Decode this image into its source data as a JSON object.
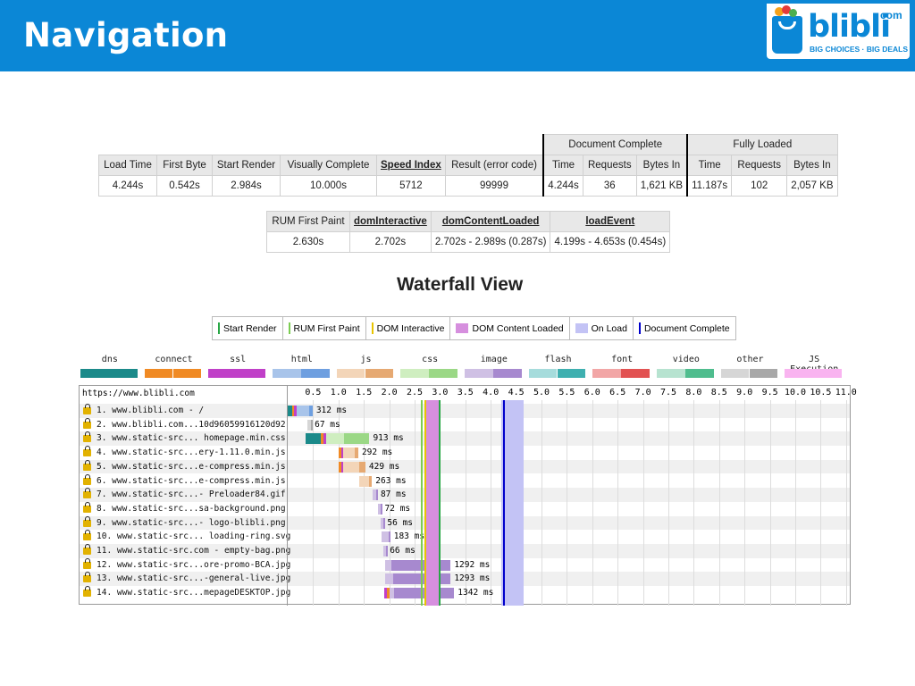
{
  "title": "Navigation",
  "logo": {
    "word": "blibli",
    "dotcom": "com",
    "tagline": "BIG CHOICES · BIG DEALS"
  },
  "summary": {
    "group_headers": [
      "Document Complete",
      "Fully Loaded"
    ],
    "headers": [
      "Load Time",
      "First Byte",
      "Start Render",
      "Visually Complete",
      "Speed Index",
      "Result (error code)",
      "Time",
      "Requests",
      "Bytes In",
      "Time",
      "Requests",
      "Bytes In"
    ],
    "values": [
      "4.244s",
      "0.542s",
      "2.984s",
      "10.000s",
      "5712",
      "99999",
      "4.244s",
      "36",
      "1,621 KB",
      "11.187s",
      "102",
      "2,057 KB"
    ]
  },
  "rum": {
    "headers": [
      "RUM First Paint",
      "domInteractive",
      "domContentLoaded",
      "loadEvent"
    ],
    "values": [
      "2.630s",
      "2.702s",
      "2.702s - 2.989s (0.287s)",
      "4.199s - 4.653s (0.454s)"
    ]
  },
  "waterfall_title": "Waterfall View",
  "legend": [
    {
      "label": "Start Render",
      "color": "#28a745"
    },
    {
      "label": "RUM First Paint",
      "color": "#7ccd52"
    },
    {
      "label": "DOM Interactive",
      "color": "#e8c400"
    },
    {
      "label": "DOM Content Loaded",
      "color": "#d68fde"
    },
    {
      "label": "On Load",
      "color": "#c3c3f5"
    },
    {
      "label": "Document Complete",
      "color": "#0000cc"
    }
  ],
  "request_types": [
    {
      "label": "dns",
      "c1": "#1b8a8a",
      "c2": "#1b8a8a"
    },
    {
      "label": "connect",
      "c1": "#f08a24",
      "c2": "#f08a24"
    },
    {
      "label": "ssl",
      "c1": "#c040c8",
      "c2": "#c040c8"
    },
    {
      "label": "html",
      "c1": "#a8c4ea",
      "c2": "#6e9fe0"
    },
    {
      "label": "js",
      "c1": "#f3d5b8",
      "c2": "#e6a972"
    },
    {
      "label": "css",
      "c1": "#cfeec0",
      "c2": "#9bd886"
    },
    {
      "label": "image",
      "c1": "#cfc0e4",
      "c2": "#a789cf"
    },
    {
      "label": "flash",
      "c1": "#a6dcdc",
      "c2": "#3fb0b0"
    },
    {
      "label": "font",
      "c1": "#f2a6a6",
      "c2": "#e25252"
    },
    {
      "label": "video",
      "c1": "#b7e3d0",
      "c2": "#4fbd8e"
    },
    {
      "label": "other",
      "c1": "#d6d6d6",
      "c2": "#a8a8a8"
    },
    {
      "label": "JS Execution",
      "c1": "#f9b4f0",
      "c2": "#f9b4f0"
    }
  ],
  "waterfall": {
    "page_url": "https://www.blibli.com",
    "ticks": [
      "0.5",
      "1.0",
      "1.5",
      "2.0",
      "2.5",
      "3.0",
      "3.5",
      "4.0",
      "4.5",
      "5.0",
      "5.5",
      "6.0",
      "6.5",
      "7.0",
      "7.5",
      "8.0",
      "8.5",
      "9.0",
      "9.5",
      "10.0",
      "10.5",
      "11.0"
    ],
    "marker_seconds": {
      "start_render": 2.984,
      "rum_first_paint": 2.63,
      "dom_interactive": 2.702,
      "dom_content_loaded": [
        2.702,
        2.989
      ],
      "on_load": [
        4.199,
        4.653
      ],
      "document_complete": 4.244
    },
    "rows": [
      {
        "label": "1. www.blibli.com - /",
        "duration": "312 ms",
        "type": "html",
        "start": 0.0,
        "wait": 0.24,
        "dl": 0.07,
        "pre": [
          {
            "c": "#1b8a8a",
            "d": 0.08
          },
          {
            "c": "#f08a24",
            "d": 0.04
          },
          {
            "c": "#c040c8",
            "d": 0.06
          }
        ]
      },
      {
        "label": "2. www.blibli.com...10d96059916120d92",
        "duration": "67 ms",
        "type": "other",
        "start": 0.39,
        "wait": 0.06,
        "dl": 0.01,
        "pre": []
      },
      {
        "label": "3. www.static-src... homepage.min.css",
        "duration": "913 ms",
        "type": "css",
        "start": 0.35,
        "wait": 0.35,
        "dl": 0.5,
        "pre": [
          {
            "c": "#1b8a8a",
            "d": 0.3
          },
          {
            "c": "#f08a24",
            "d": 0.05
          },
          {
            "c": "#c040c8",
            "d": 0.06
          }
        ]
      },
      {
        "label": "4. www.static-src...ery-1.11.0.min.js",
        "duration": "292 ms",
        "type": "js",
        "start": 1.0,
        "wait": 0.22,
        "dl": 0.07,
        "pre": [
          {
            "c": "#f08a24",
            "d": 0.05
          },
          {
            "c": "#c040c8",
            "d": 0.05
          }
        ]
      },
      {
        "label": "5. www.static-src...e-compress.min.js",
        "duration": "429 ms",
        "type": "js",
        "start": 1.0,
        "wait": 0.3,
        "dl": 0.13,
        "pre": [
          {
            "c": "#f08a24",
            "d": 0.05
          },
          {
            "c": "#c040c8",
            "d": 0.05
          }
        ]
      },
      {
        "label": "6. www.static-src...e-compress.min.js",
        "duration": "263 ms",
        "type": "js",
        "start": 1.4,
        "wait": 0.2,
        "dl": 0.06,
        "pre": []
      },
      {
        "label": "7. www.static-src...- Preloader84.gif",
        "duration": "87 ms",
        "type": "image",
        "start": 1.67,
        "wait": 0.07,
        "dl": 0.02,
        "pre": []
      },
      {
        "label": "8. www.static-src...sa-background.png",
        "duration": "72 ms",
        "type": "image",
        "start": 1.77,
        "wait": 0.06,
        "dl": 0.01,
        "pre": []
      },
      {
        "label": "9. www.static-src...- logo-blibli.png",
        "duration": "56 ms",
        "type": "image",
        "start": 1.83,
        "wait": 0.05,
        "dl": 0.01,
        "pre": []
      },
      {
        "label": "10. www.static-src... loading-ring.svg",
        "duration": "183 ms",
        "type": "image",
        "start": 1.84,
        "wait": 0.15,
        "dl": 0.03,
        "pre": []
      },
      {
        "label": "11. www.static-src.com - empty-bag.png",
        "duration": "66 ms",
        "type": "image",
        "start": 1.88,
        "wait": 0.05,
        "dl": 0.01,
        "pre": []
      },
      {
        "label": "12. www.static-src...ore-promo-BCA.jpg",
        "duration": "1292 ms",
        "type": "image",
        "start": 1.92,
        "wait": 0.12,
        "dl": 1.17,
        "pre": []
      },
      {
        "label": "13. www.static-src...-general-live.jpg",
        "duration": "1293 ms",
        "type": "image",
        "start": 1.92,
        "wait": 0.15,
        "dl": 1.14,
        "pre": []
      },
      {
        "label": "14. www.static-src...mepageDESKTOP.jpg",
        "duration": "1342 ms",
        "type": "image",
        "start": 1.9,
        "wait": 0.1,
        "dl": 1.18,
        "pre": [
          {
            "c": "#c040c8",
            "d": 0.05
          },
          {
            "c": "#f08a24",
            "d": 0.05
          }
        ]
      }
    ]
  }
}
